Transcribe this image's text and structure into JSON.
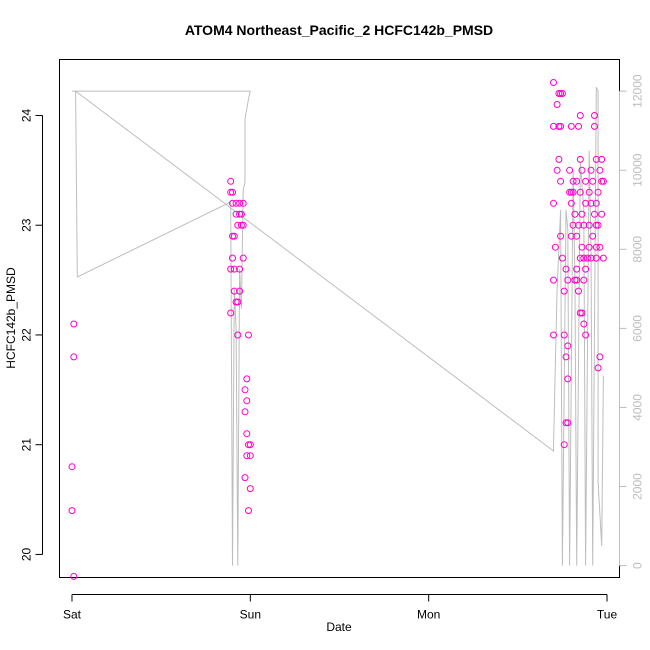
{
  "chart_data": {
    "type": "scatter",
    "title": "ATOM4 Northeast_Pacific_2 HCFC142b_PMSD",
    "xlabel": "Date",
    "ylabel": "HCFC142b_PMSD",
    "xlim": [
      -0.07,
      3.07
    ],
    "ylim": [
      19.79,
      24.51
    ],
    "x_ticks": [
      {
        "label": "Sat",
        "value": 0
      },
      {
        "label": "Sun",
        "value": 1
      },
      {
        "label": "Mon",
        "value": 2
      },
      {
        "label": "Tue",
        "value": 3
      }
    ],
    "y_ticks": [
      20,
      21,
      22,
      23,
      24
    ],
    "y2_lim": [
      -300,
      12800
    ],
    "y2_ticks": [
      0,
      2000,
      4000,
      6000,
      8000,
      10000,
      12000
    ],
    "point_color": "#ff00cc",
    "line_color": "#bdbdbd",
    "series": [
      {
        "values": [
          {
            "x": 0.01,
            "y": 22.1
          },
          {
            "x": 0.01,
            "y": 21.8
          },
          {
            "x": 0.0,
            "y": 20.8
          },
          {
            "x": 0.0,
            "y": 20.4
          },
          {
            "x": 0.01,
            "y": 19.8
          },
          {
            "x": 0.89,
            "y": 23.4
          },
          {
            "x": 0.89,
            "y": 23.3
          },
          {
            "x": 0.9,
            "y": 23.3
          },
          {
            "x": 0.9,
            "y": 23.2
          },
          {
            "x": 0.92,
            "y": 23.2
          },
          {
            "x": 0.94,
            "y": 23.2
          },
          {
            "x": 0.96,
            "y": 23.2
          },
          {
            "x": 0.92,
            "y": 23.1
          },
          {
            "x": 0.94,
            "y": 23.1
          },
          {
            "x": 0.95,
            "y": 23.1
          },
          {
            "x": 0.93,
            "y": 23.0
          },
          {
            "x": 0.95,
            "y": 23.0
          },
          {
            "x": 0.96,
            "y": 23.0
          },
          {
            "x": 0.9,
            "y": 22.9
          },
          {
            "x": 0.91,
            "y": 22.9
          },
          {
            "x": 0.9,
            "y": 22.7
          },
          {
            "x": 0.96,
            "y": 22.7
          },
          {
            "x": 0.89,
            "y": 22.6
          },
          {
            "x": 0.91,
            "y": 22.6
          },
          {
            "x": 0.94,
            "y": 22.6
          },
          {
            "x": 0.91,
            "y": 22.4
          },
          {
            "x": 0.94,
            "y": 22.4
          },
          {
            "x": 0.92,
            "y": 22.3
          },
          {
            "x": 0.93,
            "y": 22.3
          },
          {
            "x": 0.89,
            "y": 22.2
          },
          {
            "x": 0.93,
            "y": 22.0
          },
          {
            "x": 0.99,
            "y": 22.0
          },
          {
            "x": 0.98,
            "y": 21.6
          },
          {
            "x": 0.97,
            "y": 21.5
          },
          {
            "x": 0.98,
            "y": 21.4
          },
          {
            "x": 0.97,
            "y": 21.3
          },
          {
            "x": 0.98,
            "y": 21.1
          },
          {
            "x": 0.99,
            "y": 21.0
          },
          {
            "x": 1.0,
            "y": 21.0
          },
          {
            "x": 0.98,
            "y": 20.9
          },
          {
            "x": 1.0,
            "y": 20.9
          },
          {
            "x": 0.97,
            "y": 20.7
          },
          {
            "x": 1.0,
            "y": 20.6
          },
          {
            "x": 0.99,
            "y": 20.4
          },
          {
            "x": 2.7,
            "y": 24.3
          },
          {
            "x": 2.73,
            "y": 24.2
          },
          {
            "x": 2.74,
            "y": 24.2
          },
          {
            "x": 2.75,
            "y": 24.2
          },
          {
            "x": 2.72,
            "y": 24.1
          },
          {
            "x": 2.7,
            "y": 23.9
          },
          {
            "x": 2.73,
            "y": 23.9
          },
          {
            "x": 2.74,
            "y": 23.9
          },
          {
            "x": 2.8,
            "y": 23.9
          },
          {
            "x": 2.84,
            "y": 23.9
          },
          {
            "x": 2.93,
            "y": 23.9
          },
          {
            "x": 2.85,
            "y": 24.0
          },
          {
            "x": 2.93,
            "y": 24.0
          },
          {
            "x": 2.73,
            "y": 23.6
          },
          {
            "x": 2.85,
            "y": 23.6
          },
          {
            "x": 2.94,
            "y": 23.6
          },
          {
            "x": 2.97,
            "y": 23.6
          },
          {
            "x": 2.72,
            "y": 23.5
          },
          {
            "x": 2.79,
            "y": 23.5
          },
          {
            "x": 2.86,
            "y": 23.5
          },
          {
            "x": 2.91,
            "y": 23.5
          },
          {
            "x": 2.96,
            "y": 23.5
          },
          {
            "x": 2.74,
            "y": 23.4
          },
          {
            "x": 2.81,
            "y": 23.4
          },
          {
            "x": 2.83,
            "y": 23.4
          },
          {
            "x": 2.88,
            "y": 23.4
          },
          {
            "x": 2.92,
            "y": 23.4
          },
          {
            "x": 2.97,
            "y": 23.4
          },
          {
            "x": 2.98,
            "y": 23.4
          },
          {
            "x": 2.79,
            "y": 23.3
          },
          {
            "x": 2.8,
            "y": 23.3
          },
          {
            "x": 2.81,
            "y": 23.3
          },
          {
            "x": 2.85,
            "y": 23.3
          },
          {
            "x": 2.9,
            "y": 23.3
          },
          {
            "x": 2.95,
            "y": 23.3
          },
          {
            "x": 2.7,
            "y": 23.2
          },
          {
            "x": 2.8,
            "y": 23.2
          },
          {
            "x": 2.88,
            "y": 23.2
          },
          {
            "x": 2.91,
            "y": 23.2
          },
          {
            "x": 2.94,
            "y": 23.2
          },
          {
            "x": 2.82,
            "y": 23.1
          },
          {
            "x": 2.86,
            "y": 23.1
          },
          {
            "x": 2.93,
            "y": 23.1
          },
          {
            "x": 2.97,
            "y": 23.1
          },
          {
            "x": 2.81,
            "y": 23.0
          },
          {
            "x": 2.84,
            "y": 23.0
          },
          {
            "x": 2.87,
            "y": 23.0
          },
          {
            "x": 2.9,
            "y": 23.0
          },
          {
            "x": 2.94,
            "y": 23.0
          },
          {
            "x": 2.95,
            "y": 23.0
          },
          {
            "x": 2.74,
            "y": 22.9
          },
          {
            "x": 2.8,
            "y": 22.9
          },
          {
            "x": 2.92,
            "y": 22.9
          },
          {
            "x": 2.83,
            "y": 22.9
          },
          {
            "x": 2.71,
            "y": 22.8
          },
          {
            "x": 2.86,
            "y": 22.8
          },
          {
            "x": 2.9,
            "y": 22.8
          },
          {
            "x": 2.94,
            "y": 22.8
          },
          {
            "x": 2.96,
            "y": 22.8
          },
          {
            "x": 2.75,
            "y": 22.7
          },
          {
            "x": 2.85,
            "y": 22.7
          },
          {
            "x": 2.87,
            "y": 22.7
          },
          {
            "x": 2.89,
            "y": 22.7
          },
          {
            "x": 2.91,
            "y": 22.7
          },
          {
            "x": 2.94,
            "y": 22.7
          },
          {
            "x": 2.98,
            "y": 22.7
          },
          {
            "x": 2.77,
            "y": 22.6
          },
          {
            "x": 2.83,
            "y": 22.6
          },
          {
            "x": 2.88,
            "y": 22.6
          },
          {
            "x": 2.7,
            "y": 22.5
          },
          {
            "x": 2.78,
            "y": 22.5
          },
          {
            "x": 2.82,
            "y": 22.5
          },
          {
            "x": 2.83,
            "y": 22.5
          },
          {
            "x": 2.87,
            "y": 22.5
          },
          {
            "x": 2.76,
            "y": 22.4
          },
          {
            "x": 2.84,
            "y": 22.4
          },
          {
            "x": 2.85,
            "y": 22.2
          },
          {
            "x": 2.86,
            "y": 22.2
          },
          {
            "x": 2.87,
            "y": 22.1
          },
          {
            "x": 2.7,
            "y": 22.0
          },
          {
            "x": 2.76,
            "y": 22.0
          },
          {
            "x": 2.88,
            "y": 22.0
          },
          {
            "x": 2.78,
            "y": 21.9
          },
          {
            "x": 2.77,
            "y": 21.8
          },
          {
            "x": 2.96,
            "y": 21.8
          },
          {
            "x": 2.95,
            "y": 21.7
          },
          {
            "x": 2.78,
            "y": 21.6
          },
          {
            "x": 2.77,
            "y": 21.2
          },
          {
            "x": 2.78,
            "y": 21.2
          },
          {
            "x": 2.76,
            "y": 21.0
          }
        ]
      },
      {
        "axis": "right",
        "values": [
          {
            "x": 0.0,
            "y": 12000
          },
          {
            "x": 1.0,
            "y": 12000
          },
          {
            "x": 0.99,
            "y": 11800
          },
          {
            "x": 0.97,
            "y": 11300
          },
          {
            "x": 0.97,
            "y": 9700
          },
          {
            "x": 0.96,
            "y": 9500
          },
          {
            "x": 0.95,
            "y": 6500
          },
          {
            "x": 0.94,
            "y": 7500
          },
          {
            "x": 0.93,
            "y": 0
          },
          {
            "x": 0.92,
            "y": 6000
          },
          {
            "x": 0.91,
            "y": 7000
          },
          {
            "x": 0.9,
            "y": 0
          },
          {
            "x": 0.89,
            "y": 9200
          },
          {
            "x": 0.03,
            "y": 7300
          },
          {
            "x": 0.02,
            "y": 12000
          },
          {
            "x": 2.7,
            "y": 2900
          },
          {
            "x": 2.7,
            "y": 3000
          },
          {
            "x": 2.72,
            "y": 7000
          },
          {
            "x": 2.74,
            "y": 9000
          },
          {
            "x": 2.75,
            "y": 0
          },
          {
            "x": 2.77,
            "y": 9000
          },
          {
            "x": 2.78,
            "y": 8500
          },
          {
            "x": 2.79,
            "y": 0
          },
          {
            "x": 2.81,
            "y": 10000
          },
          {
            "x": 2.82,
            "y": 7300
          },
          {
            "x": 2.83,
            "y": 0
          },
          {
            "x": 2.85,
            "y": 10200
          },
          {
            "x": 2.87,
            "y": 9000
          },
          {
            "x": 2.88,
            "y": 0
          },
          {
            "x": 2.9,
            "y": 10500
          },
          {
            "x": 2.91,
            "y": 8000
          },
          {
            "x": 2.92,
            "y": 0
          },
          {
            "x": 2.94,
            "y": 12100
          },
          {
            "x": 2.95,
            "y": 12000
          },
          {
            "x": 2.95,
            "y": 2100
          },
          {
            "x": 2.97,
            "y": 500
          },
          {
            "x": 2.98,
            "y": 4800
          }
        ]
      }
    ]
  }
}
